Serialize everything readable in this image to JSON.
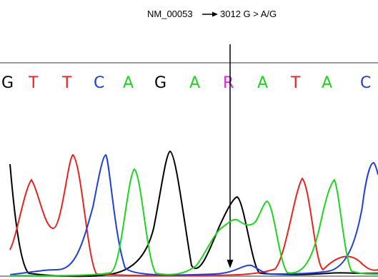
{
  "annotation": {
    "accession": "NM_00053",
    "variant": "3012 G > A/G"
  },
  "base_calls": [
    {
      "base": "G",
      "color": "#000000"
    },
    {
      "base": "T",
      "color": "#e8231f"
    },
    {
      "base": "T",
      "color": "#e8231f"
    },
    {
      "base": "C",
      "color": "#1f3fd6"
    },
    {
      "base": "A",
      "color": "#1ed41e"
    },
    {
      "base": "G",
      "color": "#000000"
    },
    {
      "base": "A",
      "color": "#1ed41e"
    },
    {
      "base": "R",
      "color": "#e020e0"
    },
    {
      "base": "A",
      "color": "#1ed41e"
    },
    {
      "base": "T",
      "color": "#e8231f"
    },
    {
      "base": "A",
      "color": "#1ed41e"
    },
    {
      "base": "C",
      "color": "#1f3fd6"
    }
  ],
  "trace_colors": {
    "A": "#1ed41e",
    "C": "#1f3fd6",
    "G": "#000000",
    "T": "#e8231f"
  }
}
